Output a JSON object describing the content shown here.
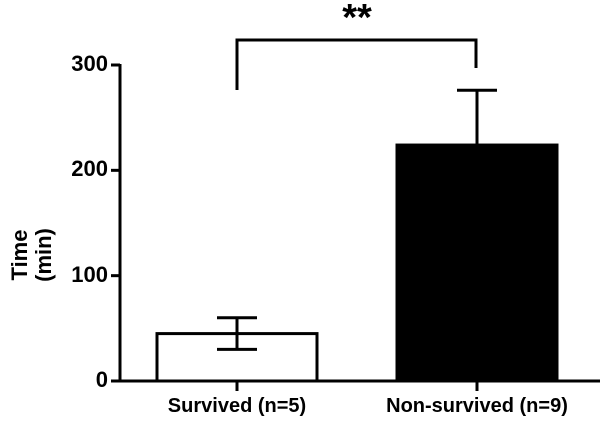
{
  "chart_data": {
    "type": "bar",
    "title": "",
    "xlabel": "",
    "ylabel": "Time\n(min)",
    "ylabel_lines": [
      "Time",
      "(min)"
    ],
    "ylim": [
      0,
      300
    ],
    "yticks": [
      0,
      100,
      200,
      300
    ],
    "ytick_labels": [
      "0",
      "100",
      "200",
      "300"
    ],
    "categories": [
      "Survived (n=5)",
      "Non-survived (n=9)"
    ],
    "values": [
      45,
      224
    ],
    "error_bars": [
      15,
      52
    ],
    "error_bar_type": "mean ± SEM",
    "bar_colors": [
      "#ffffff",
      "#000000"
    ],
    "bar_edge_color": "#000000",
    "grid": false,
    "legend": null,
    "annotations": [
      {
        "type": "significance_bracket",
        "between": [
          "Survived (n=5)",
          "Non-survived (n=9)"
        ],
        "label": "**"
      }
    ]
  }
}
